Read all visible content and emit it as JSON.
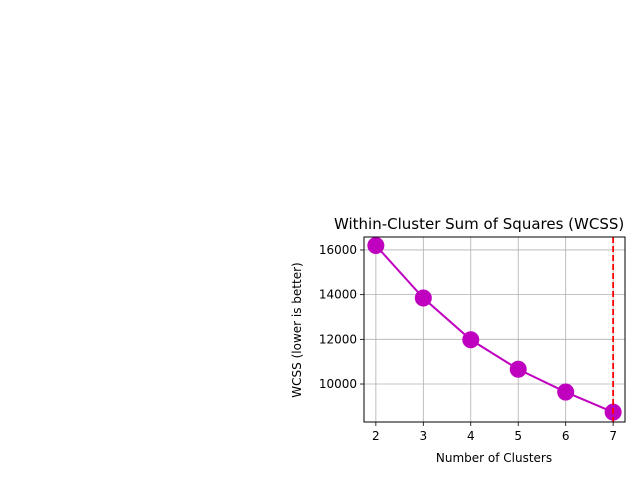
{
  "chart_data": {
    "type": "line",
    "title": "Within-Cluster Sum of Squares (WCSS)",
    "xlabel": "Number of Clusters",
    "ylabel": "WCSS (lower is better)",
    "x": [
      2,
      3,
      4,
      5,
      6,
      7
    ],
    "series": [
      {
        "values": [
          16200,
          13850,
          11980,
          10660,
          9640,
          8740
        ],
        "color": "#bf00bf",
        "marker": "circle"
      }
    ],
    "xlim": [
      1.75,
      7.25
    ],
    "ylim": [
      8300,
      16580
    ],
    "xticks": [
      "2",
      "3",
      "4",
      "5",
      "6",
      "7"
    ],
    "yticks": [
      "10000",
      "12000",
      "14000",
      "16000"
    ],
    "grid": true,
    "reference_line": {
      "x": 7,
      "color": "#ff0000",
      "style": "dashed"
    }
  }
}
